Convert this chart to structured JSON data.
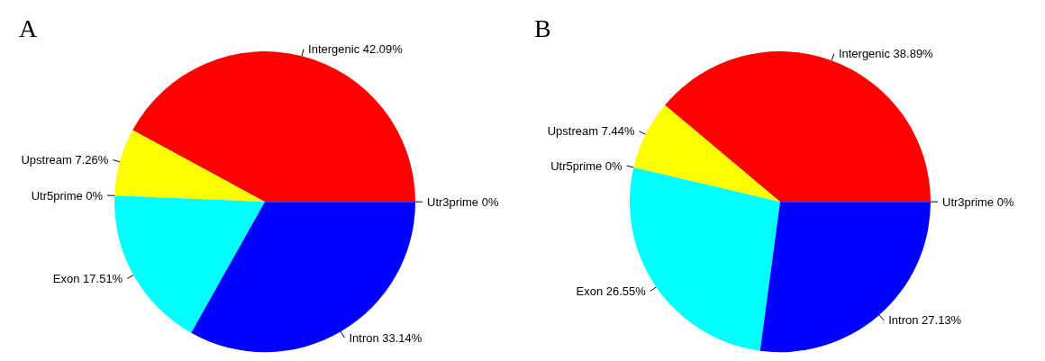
{
  "chart_data": [
    {
      "type": "pie",
      "title": "A",
      "categories": [
        "Intergenic",
        "Upstream",
        "Utr5prime",
        "Exon",
        "Intron",
        "Utr3prime"
      ],
      "values": [
        42.09,
        7.26,
        0,
        17.51,
        33.14,
        0
      ],
      "value_labels": [
        "42.09%",
        "7.26%",
        "0%",
        "17.51%",
        "33.14%",
        "0%"
      ],
      "colors": [
        "#ff0000",
        "#ffff00",
        "#00ff00",
        "#00ffff",
        "#0000ff",
        "#ff00ff"
      ]
    },
    {
      "type": "pie",
      "title": "B",
      "categories": [
        "Intergenic",
        "Upstream",
        "Utr5prime",
        "Exon",
        "Intron",
        "Utr3prime"
      ],
      "values": [
        38.89,
        7.44,
        0,
        26.55,
        27.13,
        0
      ],
      "value_labels": [
        "38.89%",
        "7.44%",
        "0%",
        "26.55%",
        "27.13%",
        "0%"
      ],
      "colors": [
        "#ff0000",
        "#ffff00",
        "#00ff00",
        "#00ffff",
        "#0000ff",
        "#ff00ff"
      ]
    }
  ]
}
